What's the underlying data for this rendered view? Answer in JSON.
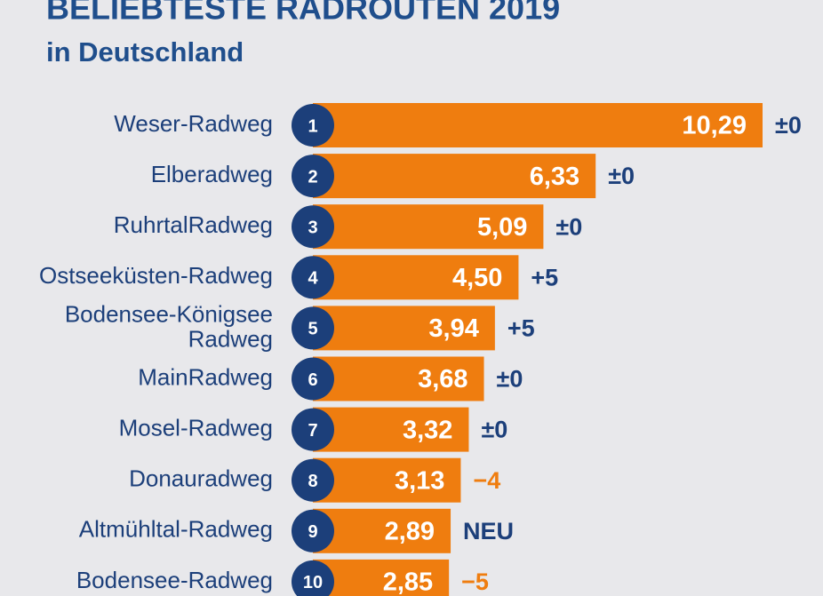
{
  "chart_data": {
    "type": "bar",
    "orientation": "horizontal",
    "title": "BELIEBTESTE RADROUTEN 2019",
    "subtitle": "in Deutschland",
    "categories": [
      "Weser-Radweg",
      "Elberadweg",
      "RuhrtalRadweg",
      "Ostseeküsten-Radweg",
      "Bodensee-Königsee\nRadweg",
      "MainRadweg",
      "Mosel-Radweg",
      "Donauradweg",
      "Altmühltal-Radweg",
      "Bodensee-Radweg"
    ],
    "ranks": [
      1,
      2,
      3,
      4,
      5,
      6,
      7,
      8,
      9,
      10
    ],
    "values": [
      10.29,
      6.33,
      5.09,
      4.5,
      3.94,
      3.68,
      3.32,
      3.13,
      2.89,
      2.85
    ],
    "value_labels": [
      "10,29",
      "6,33",
      "5,09",
      "4,50",
      "3,94",
      "3,68",
      "3,32",
      "3,13",
      "2,89",
      "2,85"
    ],
    "changes": [
      "±0",
      "±0",
      "±0",
      "+5",
      "+5",
      "±0",
      "±0",
      "−4",
      "NEU",
      "−5"
    ],
    "change_colors": [
      "#1c3f7a",
      "#1c3f7a",
      "#1c3f7a",
      "#1c3f7a",
      "#1c3f7a",
      "#1c3f7a",
      "#1c3f7a",
      "#ef7d0f",
      "#1c3f7a",
      "#ef7d0f"
    ],
    "color": "#ef7d0f",
    "rank_color": "#1c3f7a",
    "text_color": "#1c3f7a",
    "xlim": [
      0,
      10.29
    ]
  }
}
